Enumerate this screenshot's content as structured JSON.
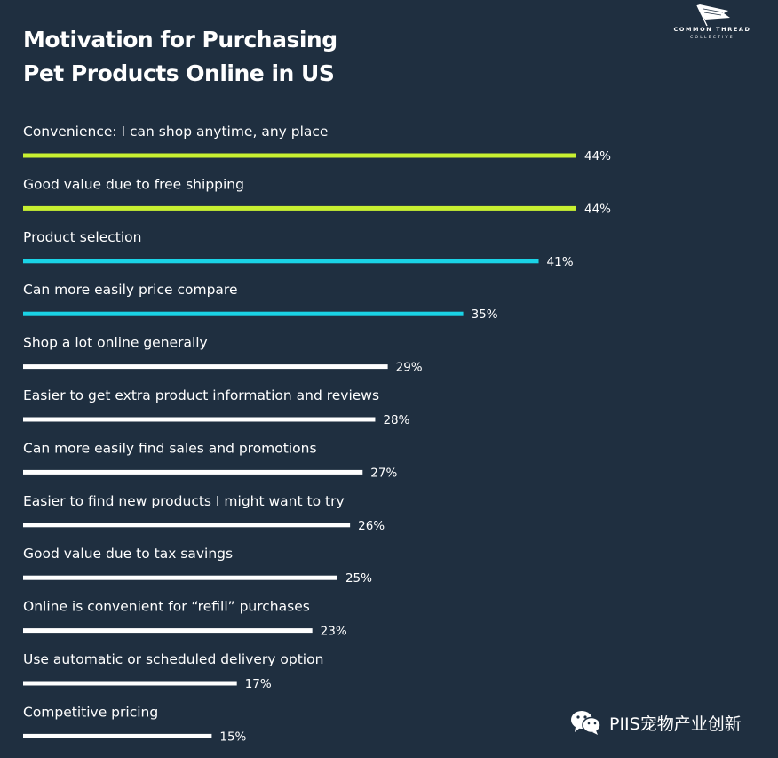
{
  "header": {
    "title_line1": "Motivation for Purchasing",
    "title_line2": "Pet Products Online in US"
  },
  "logo": {
    "main": "COMMON THREAD",
    "sub": "COLLECTIVE",
    "icon": "flag-icon"
  },
  "watermark": {
    "text": "PIIS宠物产业创新",
    "icon": "wechat-icon"
  },
  "colors": {
    "background": "#1f2f40",
    "lime": "#c8f031",
    "cyan": "#1ad3e6",
    "white": "#ffffff"
  },
  "chart_data": {
    "type": "bar",
    "orientation": "horizontal",
    "title": "Motivation for Purchasing Pet Products Online in US",
    "xlim": [
      0,
      44
    ],
    "categories": [
      "Convenience: I can shop anytime, any place",
      "Good value due to free shipping",
      "Product selection",
      "Can more easily price compare",
      "Shop a lot online generally",
      "Easier to get extra product information and reviews",
      "Can more easily find sales and promotions",
      "Easier to find new products I might want to try",
      "Good value due to tax savings",
      "Online is convenient for “refill” purchases",
      "Use automatic or scheduled delivery option",
      "Competitive pricing"
    ],
    "values": [
      44,
      44,
      41,
      35,
      29,
      28,
      27,
      26,
      25,
      23,
      17,
      15
    ],
    "value_labels": [
      "44%",
      "44%",
      "41%",
      "35%",
      "29%",
      "28%",
      "27%",
      "26%",
      "25%",
      "23%",
      "17%",
      "15%"
    ],
    "bar_colors": [
      "#c8f031",
      "#c8f031",
      "#1ad3e6",
      "#1ad3e6",
      "#ffffff",
      "#ffffff",
      "#ffffff",
      "#ffffff",
      "#ffffff",
      "#ffffff",
      "#ffffff",
      "#ffffff"
    ],
    "grid": false,
    "legend": "none"
  }
}
